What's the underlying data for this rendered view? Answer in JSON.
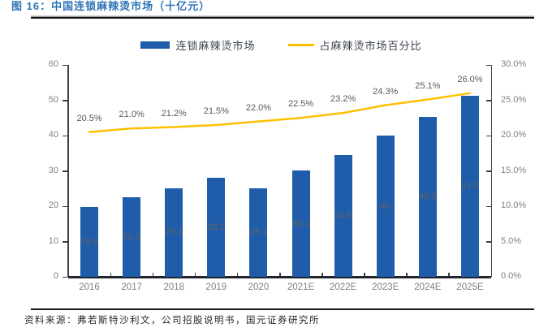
{
  "header": {
    "title": "图 16：中国连锁麻辣烫市场（十亿元）"
  },
  "footer": {
    "source": "资料来源：弗若斯特沙利文，公司招股说明书，国元证券研究所"
  },
  "colors": {
    "bar": "#1F5CA9",
    "line": "#FFC000",
    "title": "#2E74B5",
    "axis": "#3f3f3f",
    "tick_label": "#808080"
  },
  "legend": [
    {
      "label": "连锁麻辣烫市场",
      "type": "bar",
      "color": "#1F5CA9"
    },
    {
      "label": "占麻辣烫市场百分比",
      "type": "line",
      "color": "#FFC000"
    }
  ],
  "chart_data": {
    "type": "bar",
    "title": "中国连锁麻辣烫市场（十亿元）",
    "categories": [
      "2016",
      "2017",
      "2018",
      "2019",
      "2020",
      "2021E",
      "2022E",
      "2023E",
      "2024E",
      "2025E"
    ],
    "series": [
      {
        "name": "连锁麻辣烫市场",
        "type": "bar",
        "axis": "left",
        "color": "#1F5CA9",
        "values": [
          19.8,
          22.6,
          25.1,
          28.1,
          25.1,
          30.1,
          34.5,
          40,
          45.3,
          51.3
        ],
        "labels": [
          "19.8",
          "22.6",
          "25.1",
          "28.1",
          "25.1",
          "30.1",
          "34.5",
          "40",
          "45.3",
          "51.3"
        ]
      },
      {
        "name": "占麻辣烫市场百分比",
        "type": "line",
        "axis": "right",
        "color": "#FFC000",
        "values": [
          20.5,
          21.0,
          21.2,
          21.5,
          22.0,
          22.5,
          23.2,
          24.3,
          25.1,
          26.0
        ],
        "labels": [
          "20.5%",
          "21.0%",
          "21.2%",
          "21.5%",
          "22.0%",
          "22.5%",
          "23.2%",
          "24.3%",
          "25.1%",
          "26.0%"
        ]
      }
    ],
    "left_axis": {
      "min": 0,
      "max": 60,
      "step": 10,
      "ticks": [
        "0",
        "10",
        "20",
        "30",
        "40",
        "50",
        "60"
      ]
    },
    "right_axis": {
      "min": 0,
      "max": 30,
      "step": 5,
      "ticks": [
        "0.0%",
        "5.0%",
        "10.0%",
        "15.0%",
        "20.0%",
        "25.0%",
        "30.0%"
      ]
    },
    "grid": false,
    "legend_position": "top"
  }
}
